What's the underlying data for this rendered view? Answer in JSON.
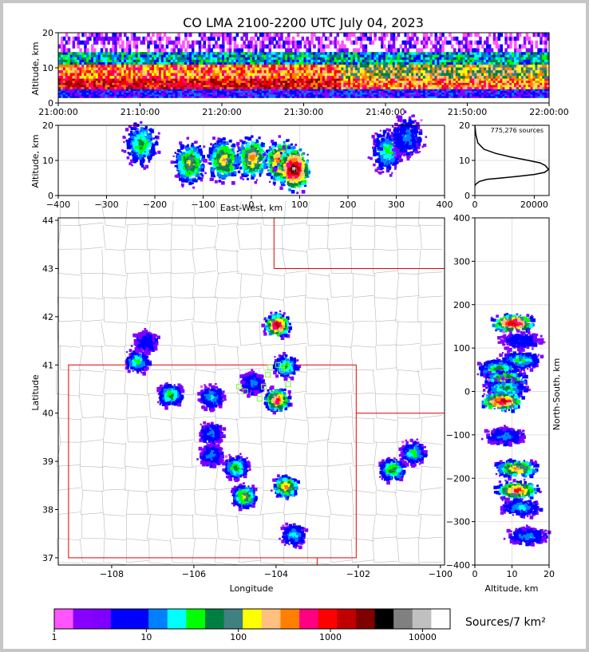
{
  "title": "CO LMA 2100-2200 UTC July 04, 2023",
  "colors": {
    "state_border": "#e00000",
    "county_border": "#b8b8b8",
    "grid": "#e0e0e0",
    "station_marker": "#7cff3c"
  },
  "chart_data": [
    {
      "id": "time_height",
      "type": "heatmap",
      "xlabel": "",
      "ylabel": "Altitude, km",
      "x_ticks": [
        "21:00:00",
        "21:10:00",
        "21:20:00",
        "21:30:00",
        "21:40:00",
        "21:50:00",
        "22:00:00"
      ],
      "x_range": [
        "21:00:00",
        "22:00:00"
      ],
      "y_ticks": [
        0,
        10,
        20
      ],
      "ylim": [
        0,
        20
      ],
      "bands": [
        {
          "alt_range": [
            1.5,
            4
          ],
          "level": 3
        },
        {
          "alt_range": [
            4,
            7
          ],
          "level": 14
        },
        {
          "alt_range": [
            7,
            11
          ],
          "level": 12
        },
        {
          "alt_range": [
            11,
            14.5
          ],
          "level": 6
        },
        {
          "alt_range": [
            14.5,
            20
          ],
          "level": 1
        }
      ]
    },
    {
      "id": "ew_altitude",
      "type": "heatmap",
      "xlabel": "East-West, km",
      "ylabel": "Altitude, km",
      "x_ticks": [
        -400,
        -300,
        -200,
        -100,
        0,
        100,
        200,
        300,
        400
      ],
      "xlim": [
        -400,
        400
      ],
      "y_ticks": [
        0,
        10,
        20
      ],
      "ylim": [
        0,
        20
      ],
      "cells": [
        {
          "x": -230,
          "z": 15,
          "level": 8
        },
        {
          "x": -130,
          "z": 9.5,
          "level": 10
        },
        {
          "x": -60,
          "z": 10.5,
          "level": 11
        },
        {
          "x": 0,
          "z": 11,
          "level": 12
        },
        {
          "x": 60,
          "z": 10,
          "level": 15
        },
        {
          "x": 85,
          "z": 8,
          "level": 18
        },
        {
          "x": 280,
          "z": 13,
          "level": 7
        },
        {
          "x": 320,
          "z": 17,
          "level": 5
        }
      ]
    },
    {
      "id": "altitude_histogram",
      "type": "line",
      "annotation": "775,276 sources",
      "x_ticks": [
        0,
        20000
      ],
      "xlim": [
        0,
        25000
      ],
      "y_ticks": [
        0,
        10,
        20
      ],
      "ylim": [
        0,
        20
      ],
      "x": [
        0,
        300,
        1500,
        4000,
        9000,
        15000,
        20000,
        23500,
        24800,
        23800,
        22000,
        18000,
        12000,
        7000,
        3000,
        1000,
        300,
        0
      ],
      "y": [
        2.8,
        3.2,
        4.0,
        4.6,
        5.0,
        5.5,
        6.0,
        6.6,
        7.4,
        8.5,
        9.3,
        10.0,
        11.0,
        12.0,
        13.2,
        15.0,
        17.5,
        20.0
      ]
    },
    {
      "id": "plan_view",
      "type": "heatmap",
      "xlabel": "Longitude",
      "ylabel": "Latitude",
      "x_ticks": [
        -108,
        -106,
        -104,
        -102,
        -100
      ],
      "xlim": [
        -109.3,
        -99.9
      ],
      "y_ticks": [
        37,
        38,
        39,
        40,
        41,
        42,
        43,
        44
      ],
      "ylim": [
        36.85,
        44.05
      ],
      "cells": [
        {
          "lon": -104.0,
          "lat": 41.85,
          "level": 16
        },
        {
          "lon": -104.0,
          "lat": 40.3,
          "level": 14
        },
        {
          "lon": -103.8,
          "lat": 41.0,
          "level": 8
        },
        {
          "lon": -103.8,
          "lat": 38.5,
          "level": 12
        },
        {
          "lon": -104.8,
          "lat": 38.3,
          "level": 10
        },
        {
          "lon": -105.0,
          "lat": 38.9,
          "level": 8
        },
        {
          "lon": -107.4,
          "lat": 41.1,
          "level": 7
        },
        {
          "lon": -107.2,
          "lat": 41.5,
          "level": 4
        },
        {
          "lon": -106.6,
          "lat": 40.4,
          "level": 8
        },
        {
          "lon": -105.6,
          "lat": 40.35,
          "level": 6
        },
        {
          "lon": -105.6,
          "lat": 39.6,
          "level": 5
        },
        {
          "lon": -105.6,
          "lat": 39.15,
          "level": 5
        },
        {
          "lon": -101.2,
          "lat": 38.85,
          "level": 9
        },
        {
          "lon": -100.7,
          "lat": 39.2,
          "level": 7
        },
        {
          "lon": -103.6,
          "lat": 37.5,
          "level": 6
        },
        {
          "lon": -104.6,
          "lat": 40.65,
          "level": 5
        }
      ],
      "stations": [
        {
          "lon": -104.9,
          "lat": 40.55
        },
        {
          "lon": -104.75,
          "lat": 40.45
        },
        {
          "lon": -104.3,
          "lat": 40.55
        },
        {
          "lon": -104.15,
          "lat": 40.95
        },
        {
          "lon": -103.95,
          "lat": 41.0
        },
        {
          "lon": -103.85,
          "lat": 40.9
        },
        {
          "lon": -103.75,
          "lat": 40.95
        },
        {
          "lon": -104.4,
          "lat": 40.3
        },
        {
          "lon": -103.7,
          "lat": 40.6
        },
        {
          "lon": -104.2,
          "lat": 40.8
        }
      ]
    },
    {
      "id": "ns_altitude",
      "type": "heatmap",
      "xlabel": "Altitude, km",
      "ylabel": "North-South, km",
      "x_ticks": [
        0,
        10,
        20
      ],
      "xlim": [
        0,
        20
      ],
      "y_ticks": [
        -400,
        -300,
        -200,
        -100,
        0,
        100,
        200,
        300,
        400
      ],
      "ylim": [
        -400,
        400
      ],
      "cells": [
        {
          "y": 160,
          "z": 10,
          "level": 16
        },
        {
          "y": 120,
          "z": 12,
          "level": 4
        },
        {
          "y": 75,
          "z": 12,
          "level": 7
        },
        {
          "y": 55,
          "z": 6,
          "level": 8
        },
        {
          "y": 30,
          "z": 8,
          "level": 11
        },
        {
          "y": 10,
          "z": 8,
          "level": 8
        },
        {
          "y": -20,
          "z": 7,
          "level": 16
        },
        {
          "y": -100,
          "z": 8,
          "level": 5
        },
        {
          "y": -175,
          "z": 11,
          "level": 12
        },
        {
          "y": -225,
          "z": 11,
          "level": 14
        },
        {
          "y": -265,
          "z": 12,
          "level": 6
        },
        {
          "y": -330,
          "z": 14,
          "level": 5
        }
      ]
    }
  ],
  "colorbar": {
    "label": "Sources/7 km²",
    "tick_labels": [
      "1",
      "10",
      "100",
      "1000",
      "10000"
    ],
    "colors": [
      "#ff55ff",
      "#8800ff",
      "#8000ff",
      "#0000ff",
      "#0000ff",
      "#0080ff",
      "#00ffff",
      "#00ff00",
      "#008040",
      "#408080",
      "#ffff00",
      "#ffc080",
      "#ff8000",
      "#ff0080",
      "#ff0000",
      "#c00000",
      "#800000",
      "#000000",
      "#808080",
      "#c0c0c0",
      "#ffffff"
    ]
  }
}
